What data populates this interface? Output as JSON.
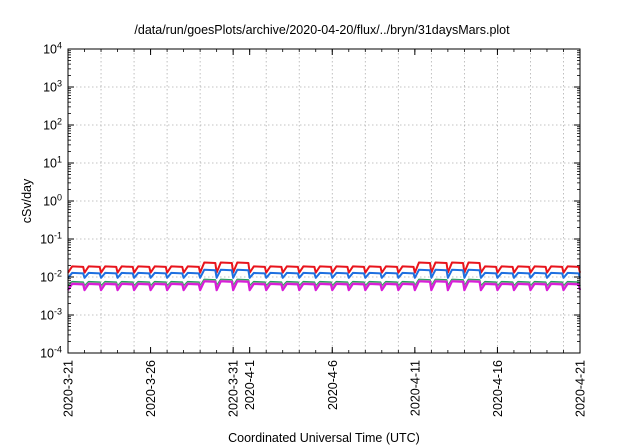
{
  "chart_data": {
    "type": "line",
    "title": "/data/run/goesPlots/archive/2020-04-20/flux/../bryn/31daysMars.plot",
    "xlabel": "Coordinated Universal Time (UTC)",
    "ylabel": "cSv/day",
    "y_scale": "log",
    "ylim": [
      0.0001,
      10000
    ],
    "xlim": [
      "2020-03-21",
      "2020-04-21"
    ],
    "grid": true,
    "legend": "none",
    "x_ticks": [
      "2020-3-21",
      "2020-3-26",
      "2020-3-31",
      "2020-4-1",
      "2020-4-6",
      "2020-4-11",
      "2020-4-16",
      "2020-4-21"
    ],
    "x_tick_dates": [
      "2020-03-21",
      "2020-03-26",
      "2020-03-31",
      "2020-04-01",
      "2020-04-06",
      "2020-04-11",
      "2020-04-16",
      "2020-04-21"
    ],
    "y_ticks": [
      {
        "base": "10",
        "exp": "-4",
        "value": 0.0001
      },
      {
        "base": "10",
        "exp": "-3",
        "value": 0.001
      },
      {
        "base": "10",
        "exp": "-2",
        "value": 0.01
      },
      {
        "base": "10",
        "exp": "-1",
        "value": 0.1
      },
      {
        "base": "10",
        "exp": "0",
        "value": 1
      },
      {
        "base": "10",
        "exp": "1",
        "value": 10
      },
      {
        "base": "10",
        "exp": "2",
        "value": 100
      },
      {
        "base": "10",
        "exp": "3",
        "value": 1000
      },
      {
        "base": "10",
        "exp": "4",
        "value": 10000
      }
    ],
    "cycle": {
      "start": "2020-03-21",
      "end": "2020-04-21",
      "period_days": 1.0,
      "rise_days": 0.25,
      "enhanced_periods": [
        [
          "2020-03-29",
          "2020-04-01"
        ],
        [
          "2020-04-11",
          "2020-04-15"
        ]
      ]
    },
    "series": [
      {
        "color": "#e8141c",
        "stroke": 2.0,
        "low": 0.013,
        "high": 0.019,
        "enhanced_high": 0.024
      },
      {
        "color": "#1e6fe0",
        "stroke": 2.0,
        "low": 0.0095,
        "high": 0.0128,
        "enhanced_high": 0.0155
      },
      {
        "color": "#22a15a",
        "stroke": 1.8,
        "low": 0.0058,
        "high": 0.0075,
        "enhanced_high": 0.0086
      },
      {
        "color": "#9a9a9a",
        "stroke": 1.2,
        "low": 0.0056,
        "high": 0.0071,
        "enhanced_high": 0.0082
      },
      {
        "color": "#d81ed8",
        "stroke": 2.2,
        "low": 0.0045,
        "high": 0.0066,
        "enhanced_high": 0.0077
      }
    ]
  }
}
